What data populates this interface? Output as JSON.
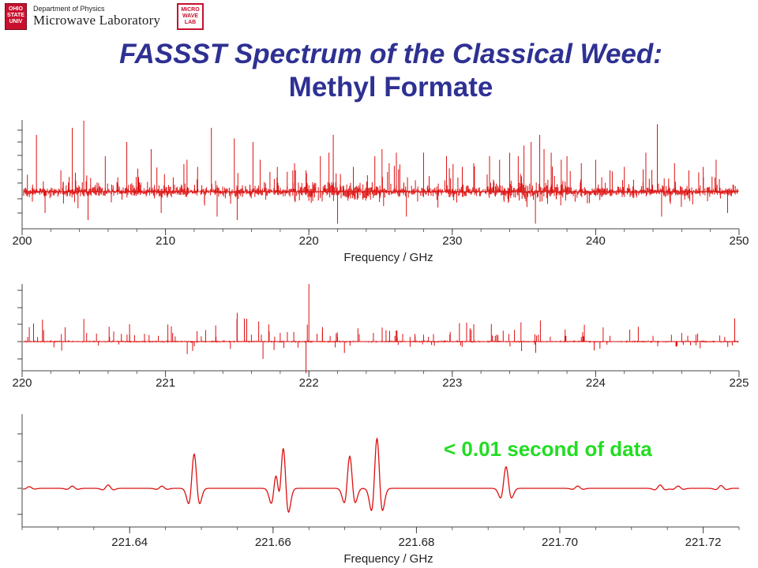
{
  "header": {
    "dept_sub": "Department of Physics",
    "dept_main": "Microwave Laboratory",
    "osu_logo_text": [
      "OHIO",
      "STATE",
      "UNIV"
    ],
    "micro_logo_text": [
      "MICRO",
      "WAVE",
      "LAB"
    ]
  },
  "title": {
    "line1": "FASSST Spectrum of the Classical Weed:",
    "line2": "Methyl Formate"
  },
  "annotation": "< 0.01 second of data",
  "colors": {
    "trace": "#dd1111",
    "title": "#2e3192",
    "annotation": "#22dd22",
    "axis": "#444444"
  },
  "chart_data": [
    {
      "type": "line",
      "xlabel": "Frequency / GHz",
      "ylabel": "",
      "xlim": [
        200,
        250
      ],
      "x_ticks": [
        "200",
        "210",
        "220",
        "230",
        "240",
        "250"
      ],
      "minor_tick_step": 2,
      "noise_level": 0.06,
      "lines": [
        [
          201.0,
          0.8
        ],
        [
          201.6,
          -0.3
        ],
        [
          203.5,
          0.9
        ],
        [
          204.3,
          1.0
        ],
        [
          204.6,
          -0.4
        ],
        [
          205.8,
          0.5
        ],
        [
          207.3,
          0.7
        ],
        [
          209.0,
          0.6
        ],
        [
          209.7,
          -0.3
        ],
        [
          211.5,
          0.45
        ],
        [
          213.2,
          0.9
        ],
        [
          213.6,
          -0.35
        ],
        [
          214.8,
          0.75
        ],
        [
          215.0,
          -0.4
        ],
        [
          216.1,
          0.7
        ],
        [
          216.6,
          0.45
        ],
        [
          217.8,
          0.35
        ],
        [
          219.0,
          0.4
        ],
        [
          219.8,
          0.3
        ],
        [
          220.8,
          0.5
        ],
        [
          221.4,
          0.55
        ],
        [
          221.7,
          0.8
        ],
        [
          222.0,
          -0.45
        ],
        [
          222.2,
          0.25
        ],
        [
          223.1,
          0.35
        ],
        [
          224.6,
          0.5
        ],
        [
          225.1,
          0.6
        ],
        [
          225.6,
          0.4
        ],
        [
          226.1,
          0.55
        ],
        [
          226.8,
          -0.35
        ],
        [
          228.0,
          0.55
        ],
        [
          229.6,
          0.5
        ],
        [
          230.7,
          0.35
        ],
        [
          231.5,
          0.4
        ],
        [
          232.6,
          0.5
        ],
        [
          233.3,
          0.45
        ],
        [
          234.0,
          0.55
        ],
        [
          234.6,
          0.5
        ],
        [
          235.0,
          0.65
        ],
        [
          235.5,
          0.7
        ],
        [
          235.8,
          -0.45
        ],
        [
          236.1,
          0.8
        ],
        [
          236.4,
          0.6
        ],
        [
          236.9,
          0.55
        ],
        [
          237.6,
          0.45
        ],
        [
          238.0,
          0.5
        ],
        [
          239.0,
          0.4
        ],
        [
          240.0,
          0.45
        ],
        [
          241.0,
          0.3
        ],
        [
          242.0,
          0.35
        ],
        [
          243.5,
          0.55
        ],
        [
          244.3,
          0.95
        ],
        [
          244.6,
          -0.35
        ],
        [
          245.5,
          0.4
        ],
        [
          246.5,
          0.3
        ],
        [
          247.5,
          0.35
        ],
        [
          248.4,
          0.45
        ],
        [
          249.2,
          -0.3
        ]
      ],
      "dense_regions": [
        [
          219,
          225
        ],
        [
          233,
          238
        ]
      ]
    },
    {
      "type": "line",
      "xlabel": "",
      "ylabel": "",
      "xlim": [
        220,
        225
      ],
      "x_ticks": [
        "220",
        "221",
        "222",
        "223",
        "224",
        "225"
      ],
      "minor_tick_step": 0.2,
      "noise_level": 0.015,
      "lines": [
        [
          220.05,
          0.25
        ],
        [
          220.15,
          0.2
        ],
        [
          220.3,
          0.25
        ],
        [
          220.45,
          0.15
        ],
        [
          220.75,
          0.12
        ],
        [
          220.95,
          0.1
        ],
        [
          221.05,
          0.15
        ],
        [
          221.22,
          0.18
        ],
        [
          221.28,
          0.2
        ],
        [
          221.35,
          0.28
        ],
        [
          221.5,
          0.5
        ],
        [
          221.55,
          0.4
        ],
        [
          221.65,
          0.35
        ],
        [
          221.68,
          -0.3
        ],
        [
          221.72,
          0.3
        ],
        [
          221.8,
          0.15
        ],
        [
          222.0,
          1.0
        ],
        [
          221.98,
          -0.55
        ],
        [
          222.2,
          0.08
        ],
        [
          222.45,
          0.15
        ],
        [
          222.6,
          0.1
        ],
        [
          222.8,
          0.12
        ],
        [
          223.05,
          0.32
        ],
        [
          223.1,
          0.33
        ],
        [
          223.15,
          0.3
        ],
        [
          223.3,
          0.1
        ],
        [
          223.6,
          0.12
        ],
        [
          223.9,
          0.08
        ],
        [
          224.1,
          0.1
        ],
        [
          224.4,
          0.1
        ],
        [
          224.6,
          0.15
        ],
        [
          224.7,
          0.12
        ],
        [
          224.9,
          0.08
        ]
      ]
    },
    {
      "type": "line",
      "xlabel": "Frequency / GHz",
      "ylabel": "",
      "xlim": [
        221.625,
        221.725
      ],
      "x_ticks": [
        "221.64",
        "221.66",
        "221.68",
        "221.70",
        "221.72"
      ],
      "minor_tick_step": 0.005,
      "peaks": [
        [
          221.649,
          0.62
        ],
        [
          221.6605,
          0.58
        ],
        [
          221.6614,
          0.95
        ],
        [
          221.6707,
          0.58
        ],
        [
          221.6745,
          0.9
        ],
        [
          221.6925,
          0.39
        ],
        [
          221.626,
          0.03
        ],
        [
          221.632,
          0.04
        ],
        [
          221.637,
          0.06
        ],
        [
          221.6445,
          0.04
        ],
        [
          221.7025,
          0.04
        ],
        [
          221.714,
          0.06
        ],
        [
          221.7165,
          0.04
        ],
        [
          221.7225,
          0.05
        ]
      ]
    }
  ]
}
